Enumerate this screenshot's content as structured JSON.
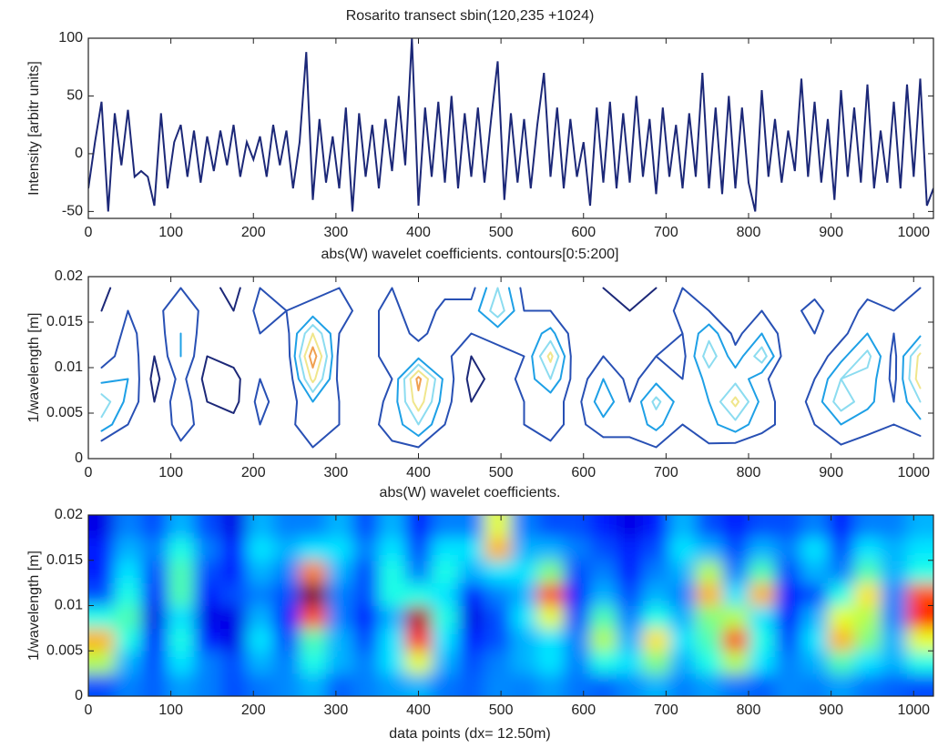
{
  "chart_data": [
    {
      "type": "line",
      "title": "Rosarito transect sbin(120,235 +1024)",
      "ylabel": "Intensity [arbitr units]",
      "color": "#1c2878",
      "xlim": [
        0,
        1024
      ],
      "xticks": [
        0,
        100,
        200,
        300,
        400,
        500,
        600,
        700,
        800,
        900,
        1000
      ],
      "ylim": [
        -56,
        100
      ],
      "yticks": [
        -50,
        0,
        50,
        100
      ],
      "x": [
        0,
        8,
        16,
        24,
        32,
        40,
        48,
        56,
        64,
        72,
        80,
        88,
        96,
        104,
        112,
        120,
        128,
        136,
        144,
        152,
        160,
        168,
        176,
        184,
        192,
        200,
        208,
        216,
        224,
        232,
        240,
        248,
        256,
        264,
        272,
        280,
        288,
        296,
        304,
        312,
        320,
        328,
        336,
        344,
        352,
        360,
        368,
        376,
        384,
        392,
        400,
        408,
        416,
        424,
        432,
        440,
        448,
        456,
        464,
        472,
        480,
        488,
        496,
        504,
        512,
        520,
        528,
        536,
        544,
        552,
        560,
        568,
        576,
        584,
        592,
        600,
        608,
        616,
        624,
        632,
        640,
        648,
        656,
        664,
        672,
        680,
        688,
        696,
        704,
        712,
        720,
        728,
        736,
        744,
        752,
        760,
        768,
        776,
        784,
        792,
        800,
        808,
        816,
        824,
        832,
        840,
        848,
        856,
        864,
        872,
        880,
        888,
        896,
        904,
        912,
        920,
        928,
        936,
        944,
        952,
        960,
        968,
        976,
        984,
        992,
        1000,
        1008,
        1016,
        1024
      ],
      "values": [
        -30,
        10,
        45,
        -50,
        35,
        -10,
        38,
        -20,
        -15,
        -20,
        -45,
        35,
        -30,
        10,
        25,
        -20,
        20,
        -25,
        15,
        -15,
        20,
        -10,
        25,
        -20,
        10,
        -5,
        15,
        -20,
        25,
        -10,
        20,
        -30,
        10,
        88,
        -40,
        30,
        -25,
        15,
        -30,
        40,
        -50,
        35,
        -20,
        25,
        -30,
        30,
        -15,
        50,
        -10,
        100,
        -45,
        40,
        -20,
        45,
        -25,
        50,
        -30,
        35,
        -20,
        40,
        -25,
        30,
        80,
        -40,
        35,
        -25,
        30,
        -30,
        25,
        70,
        -20,
        40,
        -30,
        30,
        -20,
        10,
        -45,
        40,
        -25,
        45,
        -30,
        35,
        -25,
        50,
        -20,
        30,
        -35,
        40,
        -20,
        25,
        -30,
        35,
        -20,
        70,
        -30,
        40,
        -35,
        50,
        -30,
        40,
        -25,
        -50,
        55,
        -20,
        30,
        -25,
        20,
        -15,
        65,
        -20,
        45,
        -25,
        30,
        -40,
        55,
        -20,
        40,
        -25,
        60,
        -30,
        20,
        -25,
        45,
        -30,
        60,
        -20,
        65,
        -45,
        -30
      ]
    },
    {
      "type": "contour",
      "title": "abs(W) wavelet coefficients. contours[0:5:200]",
      "ylabel": "1/wavelength [m]",
      "xlim": [
        0,
        1024
      ],
      "xticks": [
        0,
        100,
        200,
        300,
        400,
        500,
        600,
        700,
        800,
        900,
        1000
      ],
      "ylim": [
        0,
        0.02
      ],
      "yticks": [
        0,
        0.005,
        0.01,
        0.015,
        0.02
      ],
      "xbins": [
        0,
        32,
        64,
        96,
        128,
        160,
        192,
        224,
        256,
        288,
        320,
        352,
        384,
        416,
        448,
        480,
        512,
        544,
        576,
        608,
        640,
        672,
        704,
        736,
        768,
        800,
        832,
        864,
        896,
        928,
        960,
        992,
        1024
      ],
      "ybins": [
        0,
        0.0025,
        0.005,
        0.0075,
        0.01,
        0.0125,
        0.015,
        0.0175,
        0.02
      ],
      "levels": [
        15,
        30,
        45,
        60,
        75,
        90
      ],
      "level_colors": [
        "#1c2878",
        "#2850b4",
        "#1ea0e6",
        "#8cdcf0",
        "#f0e68c",
        "#f0a050"
      ],
      "z": [
        [
          20,
          25,
          22,
          28,
          25,
          20,
          24,
          26,
          30,
          22,
          25,
          28,
          30,
          24,
          22,
          26,
          25,
          28,
          24,
          22,
          26,
          30,
          25,
          28,
          24,
          22,
          26,
          25,
          28,
          24,
          22,
          20
        ],
        [
          55,
          30,
          20,
          35,
          25,
          20,
          30,
          25,
          40,
          30,
          25,
          35,
          60,
          30,
          20,
          25,
          30,
          35,
          25,
          40,
          35,
          50,
          30,
          40,
          55,
          35,
          25,
          30,
          45,
          35,
          30,
          40
        ],
        [
          70,
          40,
          15,
          40,
          15,
          10,
          35,
          20,
          45,
          30,
          20,
          35,
          85,
          35,
          15,
          20,
          30,
          35,
          25,
          55,
          30,
          65,
          35,
          45,
          80,
          40,
          20,
          35,
          70,
          50,
          30,
          60
        ],
        [
          40,
          45,
          10,
          35,
          10,
          10,
          30,
          15,
          80,
          25,
          15,
          30,
          95,
          40,
          10,
          20,
          35,
          60,
          20,
          45,
          25,
          40,
          30,
          50,
          55,
          35,
          15,
          30,
          60,
          55,
          25,
          85
        ],
        [
          20,
          40,
          15,
          45,
          15,
          20,
          25,
          20,
          100,
          25,
          20,
          40,
          40,
          35,
          15,
          25,
          30,
          80,
          15,
          30,
          20,
          30,
          25,
          70,
          35,
          70,
          15,
          20,
          40,
          65,
          25,
          80
        ],
        [
          15,
          35,
          20,
          45,
          20,
          15,
          30,
          25,
          75,
          30,
          20,
          40,
          25,
          40,
          30,
          35,
          35,
          50,
          20,
          25,
          15,
          25,
          30,
          55,
          25,
          45,
          20,
          30,
          25,
          45,
          30,
          40
        ],
        [
          15,
          30,
          25,
          40,
          25,
          15,
          35,
          30,
          35,
          35,
          25,
          35,
          20,
          35,
          35,
          70,
          30,
          30,
          25,
          20,
          15,
          20,
          35,
          30,
          20,
          30,
          25,
          35,
          20,
          35,
          30,
          35
        ],
        [
          10,
          25,
          20,
          30,
          20,
          10,
          30,
          25,
          25,
          30,
          20,
          30,
          15,
          25,
          25,
          60,
          25,
          20,
          20,
          15,
          10,
          15,
          30,
          20,
          15,
          20,
          20,
          25,
          15,
          25,
          25,
          30
        ]
      ]
    },
    {
      "type": "heatmap",
      "title": "abs(W) wavelet coefficients.",
      "ylabel": "1/wavelength [m]",
      "xlabel": "data points  (dx= 12.50m)",
      "xlim": [
        0,
        1024
      ],
      "xticks": [
        0,
        100,
        200,
        300,
        400,
        500,
        600,
        700,
        800,
        900,
        1000
      ],
      "ylim": [
        0,
        0.02
      ],
      "yticks": [
        0,
        0.005,
        0.01,
        0.015,
        0.02
      ],
      "xbins": [
        0,
        32,
        64,
        96,
        128,
        160,
        192,
        224,
        256,
        288,
        320,
        352,
        384,
        416,
        448,
        480,
        512,
        544,
        576,
        608,
        640,
        672,
        704,
        736,
        768,
        800,
        832,
        864,
        896,
        928,
        960,
        992,
        1024
      ],
      "ybins": [
        0,
        0.0025,
        0.005,
        0.0075,
        0.01,
        0.0125,
        0.015,
        0.0175,
        0.02
      ],
      "zlim": [
        0,
        100
      ],
      "colormap": [
        "#000080",
        "#0000ff",
        "#0080ff",
        "#00ffff",
        "#80ff80",
        "#ffff00",
        "#ff8000",
        "#ff0000",
        "#800000"
      ],
      "z": [
        [
          20,
          25,
          22,
          28,
          25,
          20,
          24,
          26,
          30,
          22,
          25,
          28,
          30,
          24,
          22,
          26,
          25,
          28,
          24,
          22,
          26,
          30,
          25,
          28,
          24,
          22,
          26,
          25,
          28,
          24,
          22,
          20
        ],
        [
          55,
          30,
          20,
          35,
          25,
          20,
          30,
          25,
          40,
          30,
          25,
          35,
          60,
          30,
          20,
          25,
          30,
          35,
          25,
          40,
          35,
          50,
          30,
          40,
          55,
          35,
          25,
          30,
          45,
          35,
          30,
          40
        ],
        [
          70,
          40,
          15,
          40,
          15,
          10,
          35,
          20,
          45,
          30,
          20,
          35,
          85,
          35,
          15,
          20,
          30,
          35,
          25,
          55,
          30,
          65,
          35,
          45,
          80,
          40,
          20,
          35,
          70,
          50,
          30,
          60
        ],
        [
          40,
          45,
          10,
          35,
          10,
          10,
          30,
          15,
          80,
          25,
          15,
          30,
          95,
          40,
          10,
          20,
          35,
          60,
          20,
          45,
          25,
          40,
          30,
          50,
          55,
          35,
          15,
          30,
          60,
          55,
          25,
          85
        ],
        [
          20,
          40,
          15,
          45,
          15,
          20,
          25,
          20,
          100,
          25,
          20,
          40,
          40,
          35,
          15,
          25,
          30,
          80,
          15,
          30,
          20,
          30,
          25,
          70,
          35,
          70,
          15,
          20,
          40,
          65,
          25,
          80
        ],
        [
          15,
          35,
          20,
          45,
          20,
          15,
          30,
          25,
          75,
          30,
          20,
          40,
          25,
          40,
          30,
          35,
          35,
          50,
          20,
          25,
          15,
          25,
          30,
          55,
          25,
          45,
          20,
          30,
          25,
          45,
          30,
          40
        ],
        [
          15,
          30,
          25,
          40,
          25,
          15,
          35,
          30,
          35,
          35,
          25,
          35,
          20,
          35,
          35,
          70,
          30,
          30,
          25,
          20,
          15,
          20,
          35,
          30,
          20,
          30,
          25,
          35,
          20,
          35,
          30,
          35
        ],
        [
          10,
          25,
          20,
          30,
          20,
          10,
          30,
          25,
          25,
          30,
          20,
          30,
          15,
          25,
          25,
          60,
          25,
          20,
          20,
          15,
          10,
          15,
          30,
          20,
          15,
          20,
          20,
          25,
          15,
          25,
          25,
          30
        ]
      ]
    }
  ]
}
